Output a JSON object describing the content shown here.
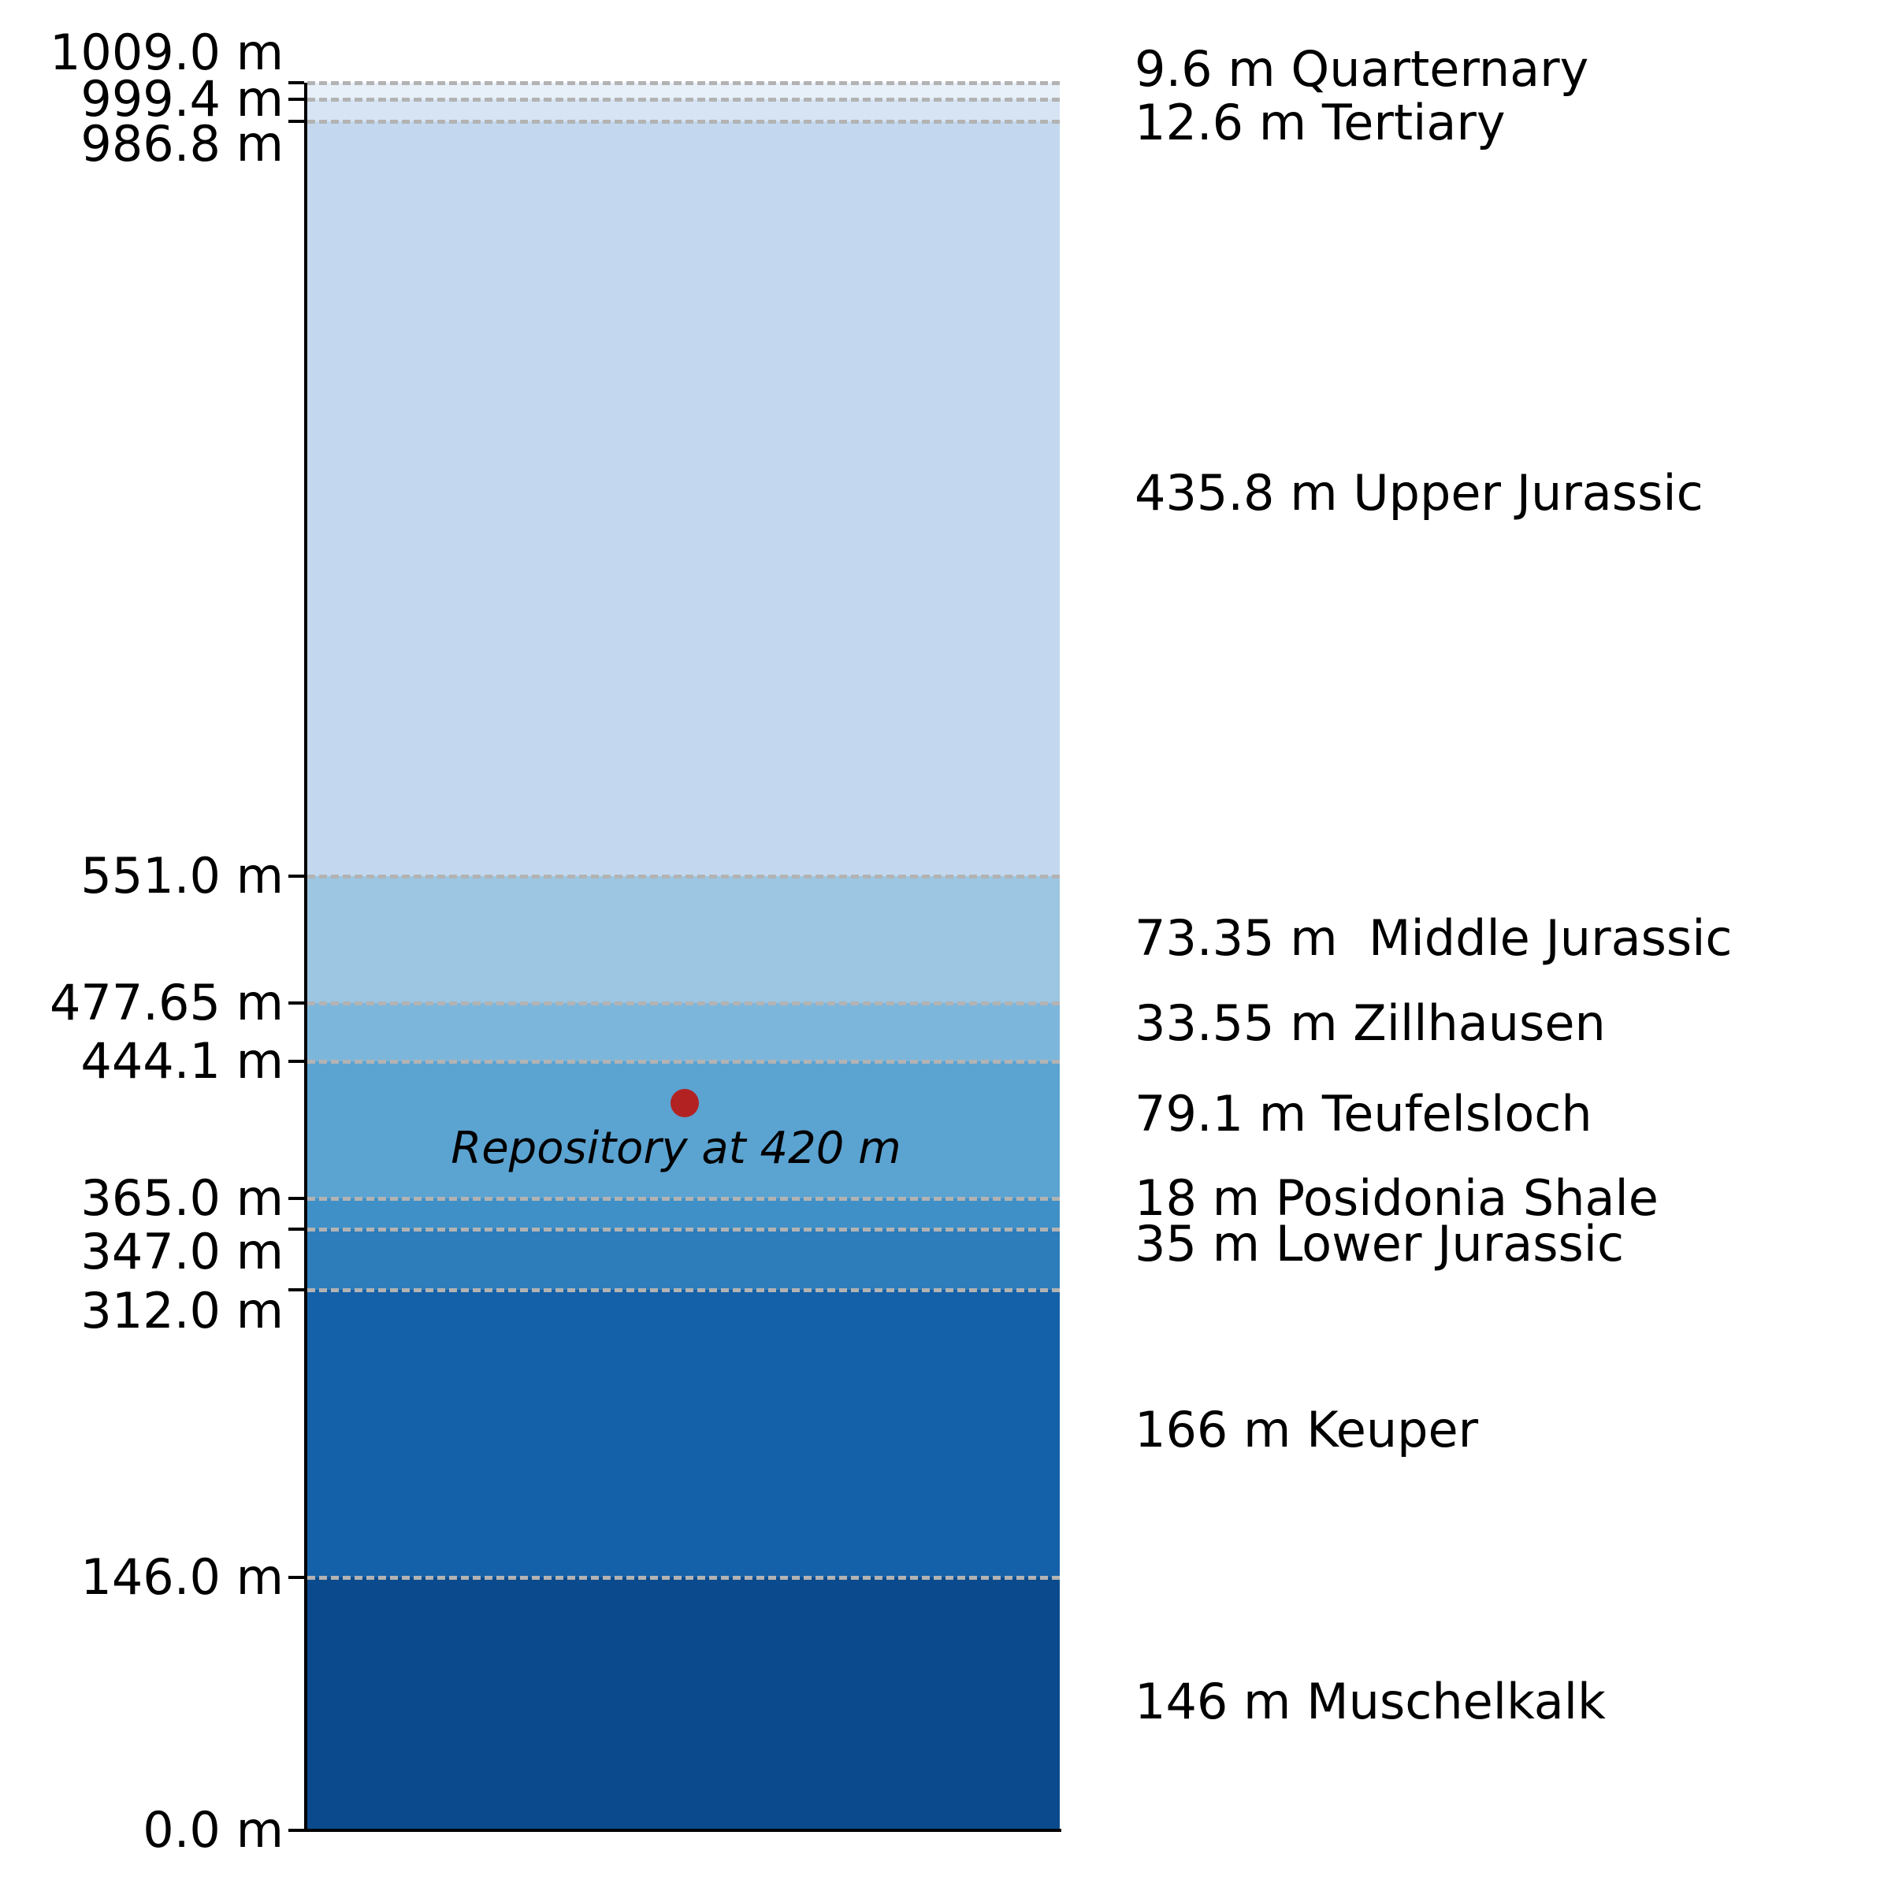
{
  "figure": {
    "background": "#ffffff",
    "axis_color": "#000000",
    "boundary_dash_color": "#b3b3b3"
  },
  "chart_data": {
    "type": "bar",
    "subtype": "stratigraphic-depth-column",
    "orientation": "vertical",
    "unit": "m",
    "ylim": [
      0.0,
      1009.0
    ],
    "grid": "dashed horizontal boundaries at each layer top",
    "legend_position": "right-side text labels",
    "ytick_labels": [
      "1009.0 m",
      "999.4 m",
      "986.8 m",
      "551.0 m",
      "477.65 m",
      "444.1 m",
      "365.0 m",
      "347.0 m",
      "312.0 m",
      "146.0 m",
      "0.0 m"
    ],
    "yticks_m": [
      1009.0,
      999.4,
      986.8,
      551.0,
      477.65,
      444.1,
      365.0,
      347.0,
      312.0,
      146.0,
      0.0
    ],
    "layers": [
      {
        "name": "Quarternary",
        "thickness_m": 9.6,
        "top_m": 1009.0,
        "bottom_m": 999.4,
        "color": "#e7eff9",
        "label": "9.6 m Quarternary"
      },
      {
        "name": "Tertiary",
        "thickness_m": 12.6,
        "top_m": 999.4,
        "bottom_m": 986.8,
        "color": "#d6e4f4",
        "label": "12.6 m Tertiary"
      },
      {
        "name": "Upper Jurassic",
        "thickness_m": 435.8,
        "top_m": 986.8,
        "bottom_m": 551.0,
        "color": "#c3d8ee",
        "label": "435.8 m Upper Jurassic"
      },
      {
        "name": "Middle Jurassic",
        "thickness_m": 73.35,
        "top_m": 551.0,
        "bottom_m": 477.65,
        "color": "#9cc6e2",
        "label": "73.35 m  Middle Jurassic"
      },
      {
        "name": "Zillhausen",
        "thickness_m": 33.55,
        "top_m": 477.65,
        "bottom_m": 444.1,
        "color": "#7db6db",
        "label": "33.55 m Zillhausen"
      },
      {
        "name": "Teufelsloch",
        "thickness_m": 79.1,
        "top_m": 444.1,
        "bottom_m": 365.0,
        "color": "#5ba3d1",
        "label": "79.1 m Teufelsloch"
      },
      {
        "name": "Posidonia Shale",
        "thickness_m": 18,
        "top_m": 365.0,
        "bottom_m": 347.0,
        "color": "#3f90c7",
        "label": "18 m Posidonia Shale"
      },
      {
        "name": "Lower Jurassic",
        "thickness_m": 35,
        "top_m": 347.0,
        "bottom_m": 312.0,
        "color": "#2d7dbb",
        "label": "35 m Lower Jurassic"
      },
      {
        "name": "Keuper",
        "thickness_m": 166,
        "top_m": 312.0,
        "bottom_m": 146.0,
        "color": "#1561a9",
        "label": "166 m Keuper"
      },
      {
        "name": "Muschelkalk",
        "thickness_m": 146,
        "top_m": 146.0,
        "bottom_m": 0.0,
        "color": "#0b4b8d",
        "label": "146 m Muschelkalk"
      }
    ],
    "annotation": {
      "text": "Repository at 420 m",
      "depth_m": 420,
      "marker_color": "#b22222",
      "text_color": "#000000"
    }
  }
}
